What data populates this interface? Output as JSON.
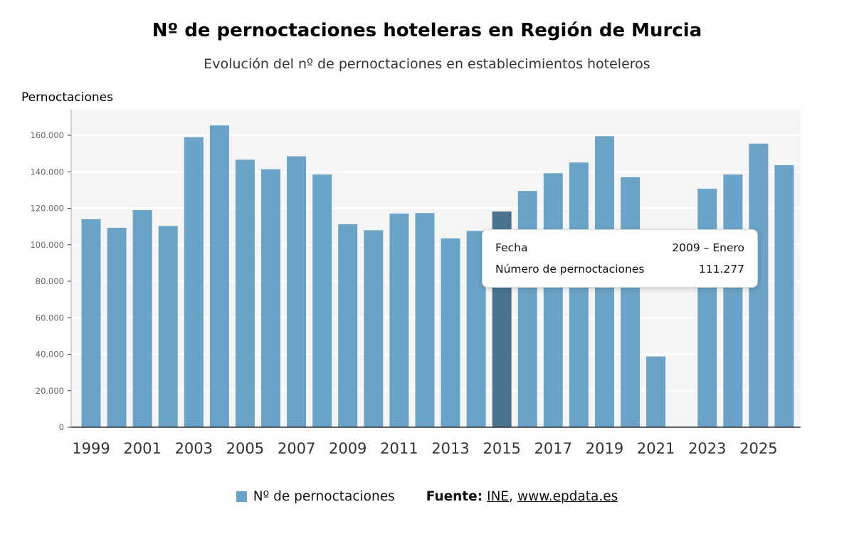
{
  "header": {
    "title": "Nº de pernoctaciones hoteleras en Región de Murcia",
    "subtitle": "Evolución del nº de pernoctaciones en establecimientos hoteleros",
    "y_axis_title": "Pernoctaciones"
  },
  "chart_data": {
    "type": "bar",
    "title": "Nº de pernoctaciones hoteleras en Región de Murcia",
    "subtitle": "Evolución del nº de pernoctaciones en establecimientos hoteleros",
    "ylabel": "Pernoctaciones",
    "xlabel": "",
    "ylim": [
      0,
      170000
    ],
    "grid": true,
    "years": [
      1999,
      2000,
      2001,
      2002,
      2003,
      2004,
      2005,
      2006,
      2007,
      2008,
      2009,
      2010,
      2011,
      2012,
      2013,
      2014,
      2015,
      2016,
      2017,
      2018,
      2019,
      2020,
      2021,
      2022,
      2023,
      2024,
      2025,
      2026
    ],
    "values": [
      114000,
      109300,
      119000,
      110300,
      159000,
      165400,
      146600,
      141400,
      148500,
      138500,
      111277,
      108000,
      117100,
      117400,
      103500,
      107600,
      118200,
      129500,
      139200,
      145100,
      159500,
      137000,
      38800,
      null,
      130700,
      138500,
      155400,
      143600
    ],
    "y_ticks": [
      0,
      20000,
      40000,
      60000,
      80000,
      100000,
      120000,
      140000,
      160000
    ],
    "y_tick_labels": [
      "0",
      "20.000",
      "40.000",
      "60.000",
      "80.000",
      "100.000",
      "120.000",
      "140.000",
      "160.000"
    ],
    "x_tick_labels": [
      "1999",
      "2001",
      "2003",
      "2005",
      "2007",
      "2009",
      "2011",
      "2013",
      "2015",
      "2017",
      "2019",
      "2021",
      "2023",
      "2025"
    ],
    "highlight_year": 2015,
    "bar_color": "#6ba3c6",
    "highlight_color": "#4a7391",
    "plot_bg": "#f5f5f5",
    "grid_color": "#ffffff",
    "axis_color": "#333333",
    "y_label_color": "#666666",
    "x_label_color": "#333333"
  },
  "tooltip": {
    "rows": [
      {
        "label": "Fecha",
        "value": "2009 – Enero"
      },
      {
        "label": "Número de pernoctaciones",
        "value": "111.277"
      }
    ]
  },
  "legend": {
    "label": "Nº de pernoctaciones",
    "swatch_color": "#6ba3c6"
  },
  "source": {
    "prefix": "Fuente:",
    "link1": "INE",
    "separator": ",",
    "link2": "www.epdata.es"
  }
}
